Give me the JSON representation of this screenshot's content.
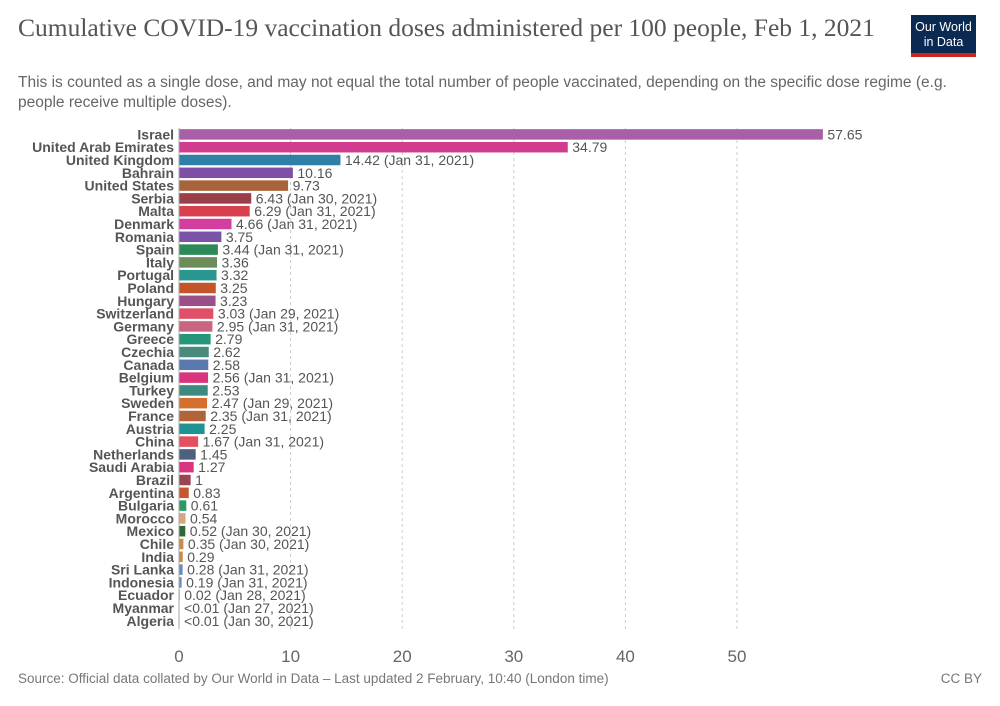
{
  "header": {
    "title": "Cumulative COVID-19 vaccination doses administered per 100 people, Feb 1, 2021",
    "subtitle": "This is counted as a single dose, and may not equal the total number of people vaccinated, depending on the specific dose regime (e.g. people receive multiple doses).",
    "logo_line1": "Our World",
    "logo_line2": "in Data"
  },
  "footer": {
    "source": "Source: Official data collated by Our World in Data – Last updated 2 February, 10:40 (London time)",
    "license": "CC BY"
  },
  "chart_data": {
    "type": "bar",
    "orientation": "horizontal",
    "title": "Cumulative COVID-19 vaccination doses administered per 100 people, Feb 1, 2021",
    "xlabel": "",
    "ylabel": "",
    "xlim": [
      0,
      58
    ],
    "xticks": [
      0,
      10,
      20,
      30,
      40,
      50
    ],
    "grid": "vertical dashed",
    "legend": "none",
    "rows": [
      {
        "country": "Israel",
        "value": 57.65,
        "label": "57.65",
        "color": "#a85fa8"
      },
      {
        "country": "United Arab Emirates",
        "value": 34.79,
        "label": "34.79",
        "color": "#d23c8f"
      },
      {
        "country": "United Kingdom",
        "value": 14.42,
        "label": "14.42 (Jan 31, 2021)",
        "color": "#2f7fa6"
      },
      {
        "country": "Bahrain",
        "value": 10.16,
        "label": "10.16",
        "color": "#7f4fa8"
      },
      {
        "country": "United States",
        "value": 9.73,
        "label": "9.73",
        "color": "#a8633a"
      },
      {
        "country": "Serbia",
        "value": 6.43,
        "label": "6.43 (Jan 30, 2021)",
        "color": "#9a3f4a"
      },
      {
        "country": "Malta",
        "value": 6.29,
        "label": "6.29 (Jan 31, 2021)",
        "color": "#d9404f"
      },
      {
        "country": "Denmark",
        "value": 4.66,
        "label": "4.66 (Jan 31, 2021)",
        "color": "#d33d9e"
      },
      {
        "country": "Romania",
        "value": 3.75,
        "label": "3.75",
        "color": "#7a52a8"
      },
      {
        "country": "Spain",
        "value": 3.44,
        "label": "3.44 (Jan 31, 2021)",
        "color": "#2b8a57"
      },
      {
        "country": "Italy",
        "value": 3.36,
        "label": "3.36",
        "color": "#6c8c5a"
      },
      {
        "country": "Portugal",
        "value": 3.32,
        "label": "3.32",
        "color": "#2a9690"
      },
      {
        "country": "Poland",
        "value": 3.25,
        "label": "3.25",
        "color": "#c4542a"
      },
      {
        "country": "Hungary",
        "value": 3.23,
        "label": "3.23",
        "color": "#9a4f86"
      },
      {
        "country": "Switzerland",
        "value": 3.03,
        "label": "3.03 (Jan 29, 2021)",
        "color": "#df5068"
      },
      {
        "country": "Germany",
        "value": 2.95,
        "label": "2.95 (Jan 31, 2021)",
        "color": "#c9657f"
      },
      {
        "country": "Greece",
        "value": 2.79,
        "label": "2.79",
        "color": "#26967a"
      },
      {
        "country": "Czechia",
        "value": 2.62,
        "label": "2.62",
        "color": "#4a8a7c"
      },
      {
        "country": "Canada",
        "value": 2.58,
        "label": "2.58",
        "color": "#5a7aaf"
      },
      {
        "country": "Belgium",
        "value": 2.56,
        "label": "2.56 (Jan 31, 2021)",
        "color": "#d9357f"
      },
      {
        "country": "Turkey",
        "value": 2.53,
        "label": "2.53",
        "color": "#3f8a7f"
      },
      {
        "country": "Sweden",
        "value": 2.47,
        "label": "2.47 (Jan 29, 2021)",
        "color": "#d46f2e"
      },
      {
        "country": "France",
        "value": 2.35,
        "label": "2.35 (Jan 31, 2021)",
        "color": "#b0643a"
      },
      {
        "country": "Austria",
        "value": 2.25,
        "label": "2.25",
        "color": "#1f9393"
      },
      {
        "country": "China",
        "value": 1.67,
        "label": "1.67 (Jan 31, 2021)",
        "color": "#e2505e"
      },
      {
        "country": "Netherlands",
        "value": 1.45,
        "label": "1.45",
        "color": "#4f5f80"
      },
      {
        "country": "Saudi Arabia",
        "value": 1.27,
        "label": "1.27",
        "color": "#d9357f"
      },
      {
        "country": "Brazil",
        "value": 1.0,
        "label": "1",
        "color": "#9a4652"
      },
      {
        "country": "Argentina",
        "value": 0.83,
        "label": "0.83",
        "color": "#c9562a"
      },
      {
        "country": "Bulgaria",
        "value": 0.61,
        "label": "0.61",
        "color": "#2a9a64"
      },
      {
        "country": "Morocco",
        "value": 0.54,
        "label": "0.54",
        "color": "#d9a47f"
      },
      {
        "country": "Mexico",
        "value": 0.52,
        "label": "0.52 (Jan 30, 2021)",
        "color": "#2f6a35"
      },
      {
        "country": "Chile",
        "value": 0.35,
        "label": "0.35 (Jan 30, 2021)",
        "color": "#c98a4a"
      },
      {
        "country": "India",
        "value": 0.29,
        "label": "0.29",
        "color": "#c98a4a"
      },
      {
        "country": "Sri Lanka",
        "value": 0.28,
        "label": "0.28 (Jan 31, 2021)",
        "color": "#6a8abf"
      },
      {
        "country": "Indonesia",
        "value": 0.19,
        "label": "0.19 (Jan 31, 2021)",
        "color": "#6a8abf"
      },
      {
        "country": "Ecuador",
        "value": 0.02,
        "label": "0.02 (Jan 28, 2021)",
        "color": "#888888"
      },
      {
        "country": "Myanmar",
        "value": 0.005,
        "label": "<0.01 (Jan 27, 2021)",
        "color": "#888888"
      },
      {
        "country": "Algeria",
        "value": 0.005,
        "label": "<0.01 (Jan 30, 2021)",
        "color": "#888888"
      }
    ]
  }
}
